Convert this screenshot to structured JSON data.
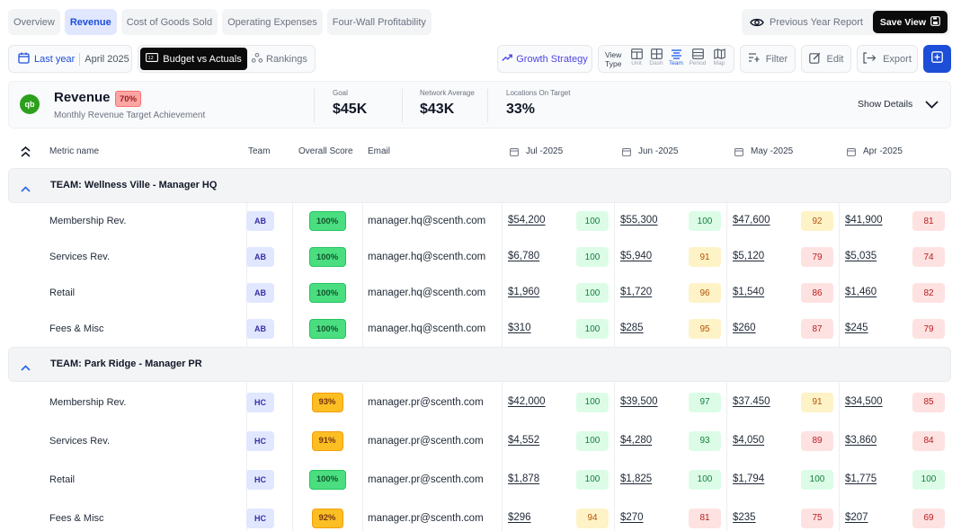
{
  "tabs": [
    "Overview",
    "Revenue",
    "Cost of Goods Sold",
    "Operating Expenses",
    "Four-Wall Profitability"
  ],
  "active_tab": "Revenue",
  "previous_year_report": "Previous Year Report",
  "save_view": "Save View",
  "toolbar": {
    "last_year": "Last year",
    "month": "April 2025",
    "budget_vs_actuals": "Budget vs Actuals",
    "rankings": "Rankings",
    "growth_strategy": "Growth Strategy",
    "view_type_label": "View Type",
    "view_options": [
      "Unit",
      "Dash",
      "Team",
      "Period",
      "Map"
    ],
    "view_active": "Team",
    "filter": "Filter",
    "edit": "Edit",
    "export": "Export"
  },
  "summary": {
    "logo": "qb",
    "title": "Revenue",
    "achievement": "70%",
    "subtitle": "Monthly Revenue Target Achievement",
    "goal_label": "Goal",
    "goal": "$45K",
    "network_label": "Network Average",
    "network": "$43K",
    "locations_label": "Locations On Target",
    "locations": "33%",
    "show_details": "Show Details"
  },
  "table": {
    "headers": {
      "metric": "Metric name",
      "team": "Team",
      "score": "Overall Score",
      "email": "Email",
      "months": [
        "Jul -2025",
        "Jun -2025",
        "May -2025",
        "Apr -2025"
      ]
    },
    "groups": [
      {
        "title": "TEAM: Wellness Ville - Manager HQ",
        "rows": [
          {
            "metric": "Membership Rev.",
            "team": "AB",
            "score": "100%",
            "score_level": "green",
            "email": "manager.hq@scenth.com",
            "months": [
              {
                "amount": "$54,200",
                "pct": "100",
                "level": "green"
              },
              {
                "amount": "$55,300",
                "pct": "100",
                "level": "green"
              },
              {
                "amount": "$47,600",
                "pct": "92",
                "level": "yellow"
              },
              {
                "amount": "$41,900",
                "pct": "81",
                "level": "red"
              }
            ]
          },
          {
            "metric": "Services Rev.",
            "team": "AB",
            "score": "100%",
            "score_level": "green",
            "email": "manager.hq@scenth.com",
            "months": [
              {
                "amount": "$6,780",
                "pct": "100",
                "level": "green"
              },
              {
                "amount": "$5,940",
                "pct": "91",
                "level": "yellow"
              },
              {
                "amount": "$5,120",
                "pct": "79",
                "level": "red"
              },
              {
                "amount": "$5,035",
                "pct": "74",
                "level": "red"
              }
            ]
          },
          {
            "metric": "Retail",
            "team": "AB",
            "score": "100%",
            "score_level": "green",
            "email": "manager.hq@scenth.com",
            "months": [
              {
                "amount": "$1,960",
                "pct": "100",
                "level": "green"
              },
              {
                "amount": "$1,720",
                "pct": "96",
                "level": "yellow"
              },
              {
                "amount": "$1,540",
                "pct": "86",
                "level": "red"
              },
              {
                "amount": "$1,460",
                "pct": "82",
                "level": "red"
              }
            ]
          },
          {
            "metric": "Fees & Misc",
            "team": "AB",
            "score": "100%",
            "score_level": "green",
            "email": "manager.hq@scenth.com",
            "months": [
              {
                "amount": "$310",
                "pct": "100",
                "level": "green"
              },
              {
                "amount": "$285",
                "pct": "95",
                "level": "yellow"
              },
              {
                "amount": "$260",
                "pct": "87",
                "level": "red"
              },
              {
                "amount": "$245",
                "pct": "79",
                "level": "red"
              }
            ]
          }
        ]
      },
      {
        "title": "TEAM: Park Ridge - Manager PR",
        "rows": [
          {
            "metric": "Membership Rev.",
            "team": "HC",
            "score": "93%",
            "score_level": "yellow",
            "email": "manager.pr@scenth.com",
            "months": [
              {
                "amount": "$42,000",
                "pct": "100",
                "level": "green"
              },
              {
                "amount": "$39,500",
                "pct": "97",
                "level": "green"
              },
              {
                "amount": "$37.450",
                "pct": "91",
                "level": "yellow"
              },
              {
                "amount": "$34,500",
                "pct": "85",
                "level": "red"
              }
            ]
          },
          {
            "metric": "Services Rev.",
            "team": "HC",
            "score": "91%",
            "score_level": "yellow",
            "email": "manager.pr@scenth.com",
            "months": [
              {
                "amount": "$4,552",
                "pct": "100",
                "level": "green"
              },
              {
                "amount": "$4,280",
                "pct": "93",
                "level": "green"
              },
              {
                "amount": "$4,050",
                "pct": "89",
                "level": "red"
              },
              {
                "amount": "$3,860",
                "pct": "84",
                "level": "red"
              }
            ]
          },
          {
            "metric": "Retail",
            "team": "HC",
            "score": "100%",
            "score_level": "green",
            "email": "manager.pr@scenth.com",
            "months": [
              {
                "amount": "$1,878",
                "pct": "100",
                "level": "green"
              },
              {
                "amount": "$1,825",
                "pct": "100",
                "level": "green"
              },
              {
                "amount": "$1,794",
                "pct": "100",
                "level": "green"
              },
              {
                "amount": "$1,775",
                "pct": "100",
                "level": "green"
              }
            ]
          },
          {
            "metric": "Fees & Misc",
            "team": "HC",
            "score": "92%",
            "score_level": "yellow",
            "email": "manager.pr@scenth.com",
            "months": [
              {
                "amount": "$296",
                "pct": "94",
                "level": "yellow"
              },
              {
                "amount": "$270",
                "pct": "81",
                "level": "red"
              },
              {
                "amount": "$235",
                "pct": "75",
                "level": "red"
              },
              {
                "amount": "$207",
                "pct": "69",
                "level": "red"
              }
            ]
          }
        ]
      }
    ]
  },
  "colors": {
    "accent": "#1d4ed8",
    "good": "#dcfce7",
    "warn": "#fef3c7",
    "bad": "#fee2e2"
  }
}
